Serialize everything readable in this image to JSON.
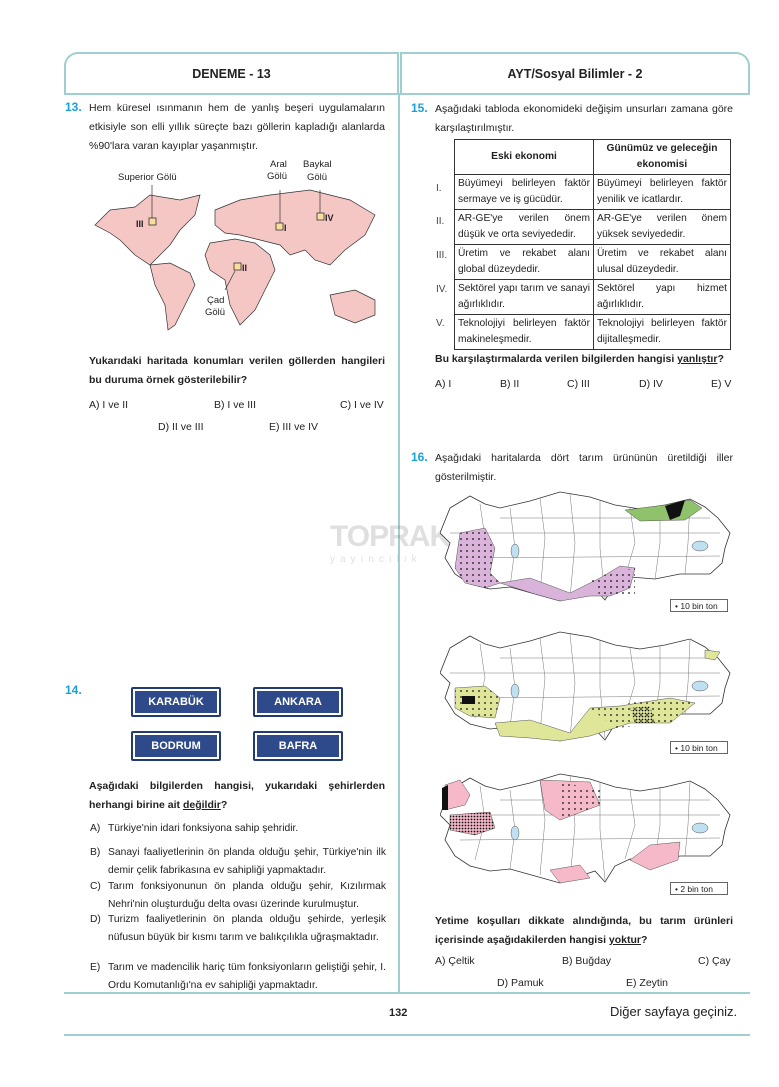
{
  "header": {
    "left": "DENEME - 13",
    "right": "AYT/Sosyal Bilimler - 2"
  },
  "colors": {
    "accent": "#1aa0d8",
    "rule": "#9fcfcf",
    "city_box": "#2f4a8a",
    "map_land": "#f4c6c4"
  },
  "q13": {
    "number": "13.",
    "text": "Hem küresel ısınmanın hem de yanlış beşeri uygulamaların etkisiyle son elli yıllık süreçte bazı göllerin kapladığı alanlarda %90'lara varan kayıplar yaşanmıştır.",
    "map_labels": {
      "superior": "Superior Gölü",
      "aral_1": "Aral",
      "aral_2": "Gölü",
      "baykal_1": "Baykal",
      "baykal_2": "Gölü",
      "cad_1": "Çad",
      "cad_2": "Gölü",
      "m1": "I",
      "m2": "II",
      "m3": "III",
      "m4": "IV"
    },
    "question": "Yukarıdaki haritada konumları verilen göllerden hangileri bu duruma örnek gösterilebilir?",
    "options": [
      "A) I ve II",
      "B) I ve III",
      "C) I ve IV",
      "D) II ve III",
      "E) III ve IV"
    ]
  },
  "q14": {
    "number": "14.",
    "cities": [
      "KARABÜK",
      "ANKARA",
      "BODRUM",
      "BAFRA"
    ],
    "question_pre": "Aşağıdaki bilgilerden hangisi, yukarıdaki şehirlerden herhangi birine ait ",
    "question_underlined": "değildir",
    "question_post": "?",
    "options": [
      {
        "letter": "A)",
        "text": "Türkiye'nin idari fonksiyona sahip şehridir."
      },
      {
        "letter": "B)",
        "text": "Sanayi faaliyetlerinin ön planda olduğu şehir, Türkiye'nin ilk demir çelik fabrikasına ev sahipliği yapmaktadır."
      },
      {
        "letter": "C)",
        "text": "Tarım fonksiyonunun ön planda olduğu şehir, Kızılırmak Nehri'nin oluşturduğu delta ovası üzerinde kurulmuştur."
      },
      {
        "letter": "D)",
        "text": "Turizm faaliyetlerinin ön planda olduğu şehirde, yerleşik nüfusun büyük bir kısmı tarım ve balıkçılıkla uğraşmaktadır."
      },
      {
        "letter": "E)",
        "text": "Tarım ve madencilik hariç tüm fonksiyonların geliştiği şehir, I. Ordu Komutanlığı'na ev sahipliği yapmaktadır."
      }
    ]
  },
  "q15": {
    "number": "15.",
    "text": "Aşağıdaki tabloda ekonomideki değişim unsurları zamana göre karşılaştırılmıştır.",
    "table": {
      "headers": [
        "Eski ekonomi",
        "Günümüz ve geleceğin ekonomisi"
      ],
      "rows": [
        {
          "num": "I.",
          "old": "Büyümeyi belirleyen faktör sermaye ve iş gücüdür.",
          "new": "Büyümeyi belirleyen faktör yenilik ve icatlardır."
        },
        {
          "num": "II.",
          "old": "AR-GE'ye verilen önem düşük ve orta seviyededir.",
          "new": "AR-GE'ye verilen önem yüksek seviyededir."
        },
        {
          "num": "III.",
          "old": "Üretim ve rekabet alanı global düzeydedir.",
          "new": "Üretim ve rekabet alanı ulusal düzeydedir."
        },
        {
          "num": "IV.",
          "old": "Sektörel yapı tarım ve sanayi ağırlıklıdır.",
          "new": "Sektörel yapı hizmet ağırlıklıdır."
        },
        {
          "num": "V.",
          "old": "Teknolojiyi belirleyen faktör makineleşmedir.",
          "new": "Teknolojiyi belirleyen faktör dijitalleşmedir."
        }
      ]
    },
    "question_pre": "Bu karşılaştırmalarda verilen bilgilerden hangisi ",
    "question_underlined": "yanlıştır",
    "question_post": "?",
    "options": [
      "A) I",
      "B) II",
      "C) III",
      "D) IV",
      "E) V"
    ]
  },
  "q16": {
    "number": "16.",
    "text": "Aşağıdaki haritalarda dört tarım ürününün üretildiği iller gösterilmiştir.",
    "legends": [
      "• 10 bin ton",
      "• 10 bin ton",
      "• 2 bin ton"
    ],
    "map_colors": [
      "#d9b3d9",
      "#8fc26a",
      "#dfe69a",
      "#f6b9c9"
    ],
    "question_pre": "Yetime koşulları dikkate alındığında, bu tarım ürünleri içerisinde aşağıdakilerden hangisi ",
    "question_underlined": "yoktur",
    "question_post": "?",
    "options": [
      "A) Çeltik",
      "B) Buğday",
      "C) Çay",
      "D) Pamuk",
      "E) Zeytin"
    ]
  },
  "watermark": "TOPRAK yayıncılık",
  "footer": {
    "page": "132",
    "next": "Diğer sayfaya geçiniz."
  }
}
